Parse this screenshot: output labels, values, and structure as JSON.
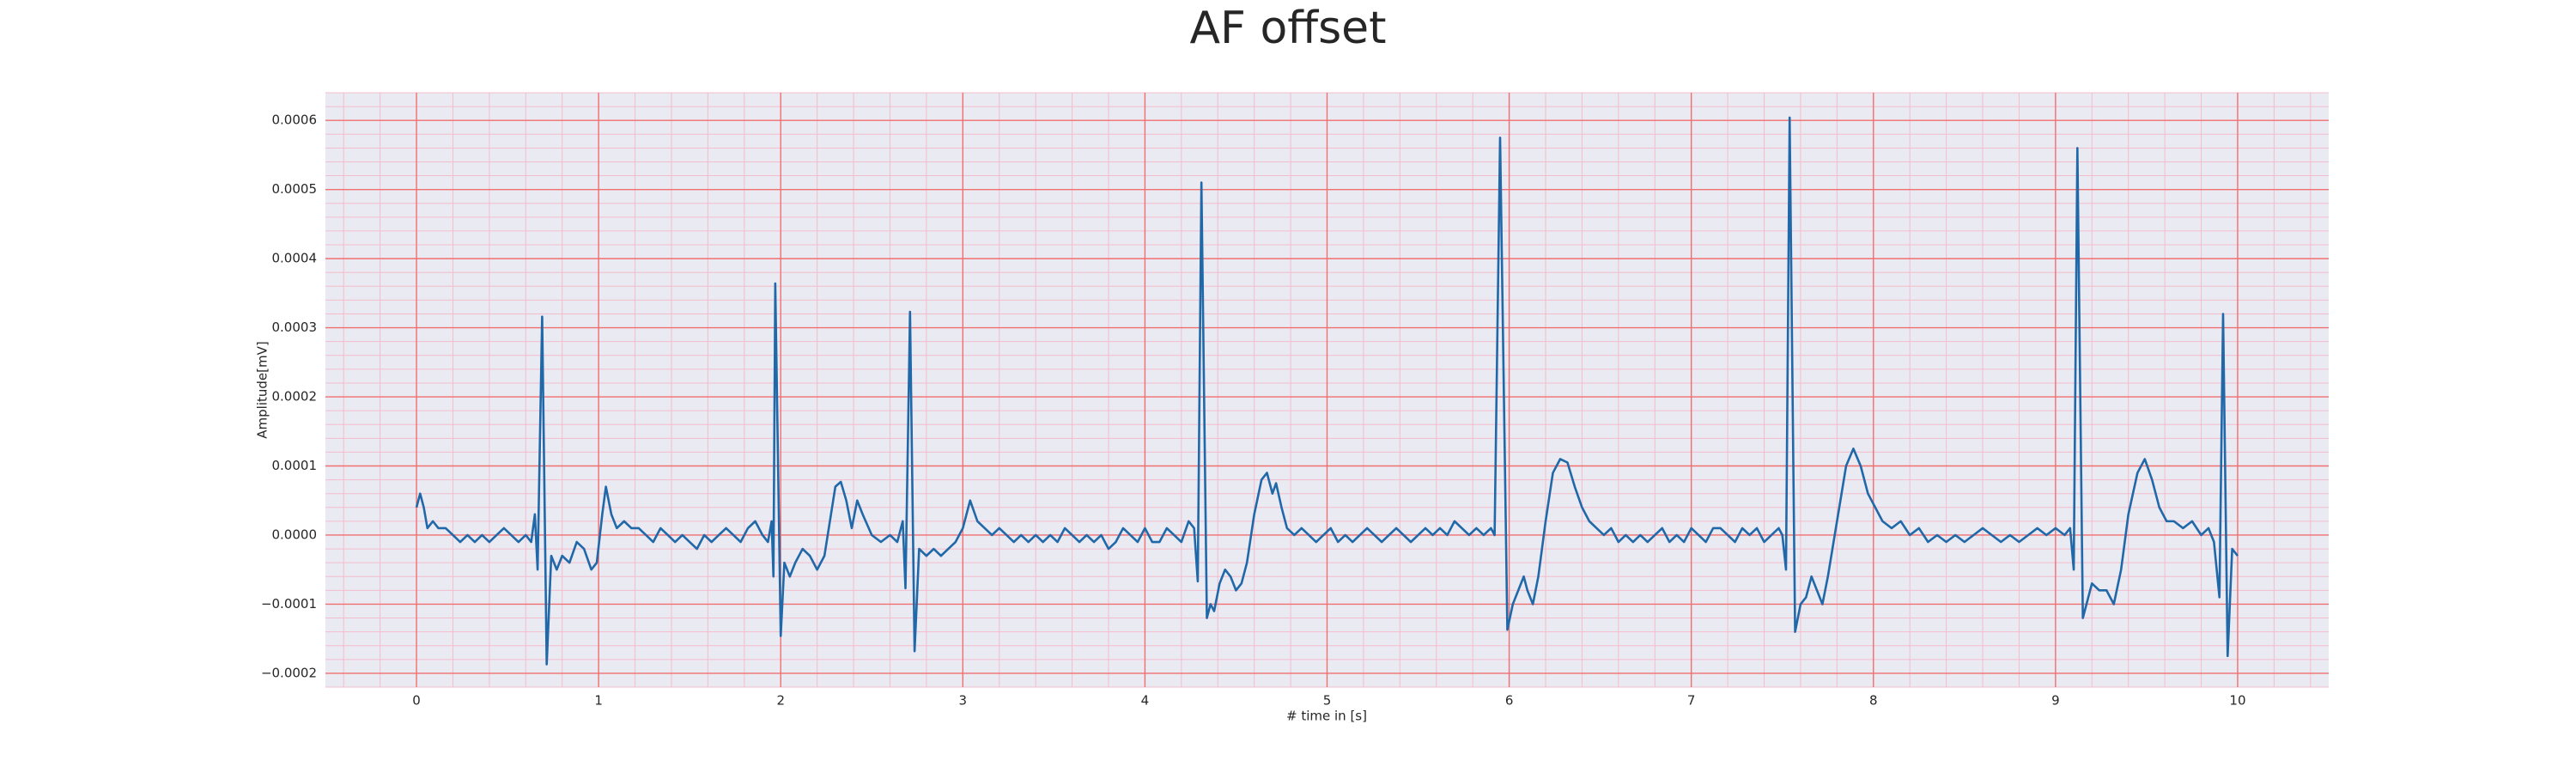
{
  "chart_data": {
    "type": "line",
    "title": "AF offset",
    "xlabel": "# time in [s]",
    "ylabel": "Amplitude[mV]",
    "xlim": [
      -0.5,
      10.5
    ],
    "ylim": [
      -0.00022,
      0.00064
    ],
    "xticks": [
      0,
      1,
      2,
      3,
      4,
      5,
      6,
      7,
      8,
      9,
      10
    ],
    "yticks": [
      {
        "value": -0.0002,
        "label": "−0.0002"
      },
      {
        "value": -0.0001,
        "label": "−0.0001"
      },
      {
        "value": 0,
        "label": "0.0000"
      },
      0.0001,
      0.0002,
      0.0003,
      0.0004,
      0.0005,
      0.0006
    ],
    "grid": true,
    "grid_color": "#f07070",
    "minor_grid": {
      "x": 0.2,
      "y": 2e-05,
      "color": "#f4bccb"
    },
    "background": "#eaeaf2",
    "x": [
      0,
      0.02,
      0.04,
      0.06,
      0.09,
      0.12,
      0.16,
      0.2,
      0.24,
      0.28,
      0.32,
      0.36,
      0.4,
      0.44,
      0.48,
      0.52,
      0.56,
      0.6,
      0.63,
      0.65,
      0.665,
      0.69,
      0.715,
      0.74,
      0.77,
      0.8,
      0.84,
      0.88,
      0.92,
      0.96,
      0.99,
      1.02,
      1.04,
      1.07,
      1.1,
      1.14,
      1.18,
      1.22,
      1.26,
      1.3,
      1.34,
      1.38,
      1.42,
      1.46,
      1.5,
      1.54,
      1.58,
      1.62,
      1.66,
      1.7,
      1.74,
      1.78,
      1.82,
      1.86,
      1.9,
      1.93,
      1.95,
      1.96,
      1.97,
      2.0,
      2.02,
      2.05,
      2.08,
      2.12,
      2.16,
      2.2,
      2.24,
      2.27,
      2.3,
      2.33,
      2.36,
      2.39,
      2.42,
      2.45,
      2.5,
      2.55,
      2.6,
      2.64,
      2.67,
      2.685,
      2.71,
      2.735,
      2.76,
      2.8,
      2.84,
      2.88,
      2.92,
      2.96,
      3.0,
      3.04,
      3.08,
      3.12,
      3.16,
      3.2,
      3.24,
      3.28,
      3.32,
      3.36,
      3.4,
      3.44,
      3.48,
      3.52,
      3.56,
      3.6,
      3.64,
      3.68,
      3.72,
      3.76,
      3.8,
      3.84,
      3.88,
      3.92,
      3.96,
      4.0,
      4.04,
      4.08,
      4.12,
      4.16,
      4.2,
      4.24,
      4.27,
      4.29,
      4.31,
      4.34,
      4.36,
      4.38,
      4.41,
      4.44,
      4.47,
      4.5,
      4.53,
      4.56,
      4.6,
      4.64,
      4.67,
      4.7,
      4.72,
      4.75,
      4.78,
      4.82,
      4.86,
      4.9,
      4.94,
      4.98,
      5.02,
      5.06,
      5.1,
      5.14,
      5.18,
      5.22,
      5.26,
      5.3,
      5.34,
      5.38,
      5.42,
      5.46,
      5.5,
      5.54,
      5.58,
      5.62,
      5.66,
      5.7,
      5.74,
      5.78,
      5.82,
      5.86,
      5.9,
      5.92,
      5.95,
      5.99,
      6.02,
      6.05,
      6.08,
      6.1,
      6.13,
      6.16,
      6.2,
      6.24,
      6.28,
      6.32,
      6.36,
      6.4,
      6.44,
      6.48,
      6.52,
      6.56,
      6.6,
      6.64,
      6.68,
      6.72,
      6.76,
      6.8,
      6.84,
      6.88,
      6.92,
      6.96,
      7.0,
      7.04,
      7.08,
      7.12,
      7.16,
      7.2,
      7.24,
      7.28,
      7.32,
      7.36,
      7.4,
      7.44,
      7.48,
      7.5,
      7.52,
      7.54,
      7.57,
      7.6,
      7.63,
      7.66,
      7.69,
      7.72,
      7.75,
      7.8,
      7.85,
      7.89,
      7.93,
      7.97,
      8.01,
      8.05,
      8.1,
      8.15,
      8.2,
      8.25,
      8.3,
      8.35,
      8.4,
      8.45,
      8.5,
      8.55,
      8.6,
      8.65,
      8.7,
      8.75,
      8.8,
      8.85,
      8.9,
      8.95,
      9.0,
      9.05,
      9.08,
      9.1,
      9.12,
      9.15,
      9.17,
      9.2,
      9.24,
      9.28,
      9.32,
      9.36,
      9.4,
      9.45,
      9.49,
      9.53,
      9.57,
      9.61,
      9.65,
      9.7,
      9.75,
      9.8,
      9.84,
      9.87,
      9.9,
      9.92,
      9.945,
      9.97,
      10.0
    ],
    "series": [
      {
        "color": "#2068a8",
        "values": [
          4e-05,
          6e-05,
          4e-05,
          1e-05,
          2e-05,
          1e-05,
          1e-05,
          0,
          -1e-05,
          0,
          -1e-05,
          0,
          -1e-05,
          0,
          1e-05,
          0,
          -1e-05,
          0,
          -1e-05,
          3e-05,
          -5e-05,
          0.000316,
          -0.000187,
          -3e-05,
          -5e-05,
          -3e-05,
          -4e-05,
          -1e-05,
          -2e-05,
          -5e-05,
          -4e-05,
          3e-05,
          7e-05,
          3e-05,
          1e-05,
          2e-05,
          1e-05,
          1e-05,
          0,
          -1e-05,
          1e-05,
          0,
          -1e-05,
          0,
          -1e-05,
          -2e-05,
          0,
          -1e-05,
          0,
          1e-05,
          0,
          -1e-05,
          1e-05,
          2e-05,
          0,
          -1e-05,
          2e-05,
          -6e-05,
          0.000364,
          -0.000146,
          -4e-05,
          -6e-05,
          -4e-05,
          -2e-05,
          -3e-05,
          -5e-05,
          -3e-05,
          2e-05,
          7e-05,
          7.7e-05,
          5e-05,
          1e-05,
          5e-05,
          3e-05,
          0,
          -1e-05,
          0,
          -1e-05,
          2e-05,
          -7.7e-05,
          0.000323,
          -0.000168,
          -2e-05,
          -3e-05,
          -2e-05,
          -3e-05,
          -2e-05,
          -1e-05,
          1e-05,
          5e-05,
          2e-05,
          1e-05,
          0,
          1e-05,
          0,
          -1e-05,
          0,
          -1e-05,
          0,
          -1e-05,
          0,
          -1e-05,
          1e-05,
          0,
          -1e-05,
          0,
          -1e-05,
          0,
          -2e-05,
          -1e-05,
          1e-05,
          0,
          -1e-05,
          1e-05,
          -1e-05,
          -1e-05,
          1e-05,
          0,
          -1e-05,
          2e-05,
          1e-05,
          -6.7e-05,
          0.00051,
          -0.00012,
          -0.0001,
          -0.00011,
          -7e-05,
          -5e-05,
          -6e-05,
          -8e-05,
          -7e-05,
          -4e-05,
          3e-05,
          8e-05,
          9e-05,
          6e-05,
          7.5e-05,
          4e-05,
          1e-05,
          0,
          1e-05,
          0,
          -1e-05,
          0,
          1e-05,
          -1e-05,
          0,
          -1e-05,
          0,
          1e-05,
          0,
          -1e-05,
          0,
          1e-05,
          0,
          -1e-05,
          0,
          1e-05,
          0,
          1e-05,
          0,
          2e-05,
          1e-05,
          0,
          1e-05,
          0,
          1e-05,
          0,
          0.000575,
          -0.000137,
          -0.0001,
          -8e-05,
          -6e-05,
          -8e-05,
          -0.0001,
          -6e-05,
          2e-05,
          9e-05,
          0.00011,
          0.000105,
          7e-05,
          4e-05,
          2e-05,
          1e-05,
          0,
          1e-05,
          -1e-05,
          0,
          -1e-05,
          0,
          -1e-05,
          0,
          1e-05,
          -1e-05,
          0,
          -1e-05,
          1e-05,
          0,
          -1e-05,
          1e-05,
          1e-05,
          0,
          -1e-05,
          1e-05,
          0,
          1e-05,
          -1e-05,
          0,
          1e-05,
          0,
          -5e-05,
          0.000604,
          -0.00014,
          -0.0001,
          -9e-05,
          -6e-05,
          -8e-05,
          -0.0001,
          -6e-05,
          2e-05,
          0.0001,
          0.000125,
          0.0001,
          6e-05,
          4e-05,
          2e-05,
          1e-05,
          2e-05,
          0,
          1e-05,
          -1e-05,
          0,
          -1e-05,
          0,
          -1e-05,
          0,
          1e-05,
          0,
          -1e-05,
          0,
          -1e-05,
          0,
          1e-05,
          0,
          1e-05,
          0,
          1e-05,
          -5e-05,
          0.00056,
          -0.00012,
          -0.0001,
          -7e-05,
          -8e-05,
          -8e-05,
          -0.0001,
          -5e-05,
          3e-05,
          9e-05,
          0.00011,
          8e-05,
          4e-05,
          2e-05,
          2e-05,
          1e-05,
          2e-05,
          0,
          1e-05,
          -1e-05,
          -9e-05,
          0.00032,
          -0.000175,
          -2e-05,
          -3e-05
        ]
      }
    ]
  }
}
